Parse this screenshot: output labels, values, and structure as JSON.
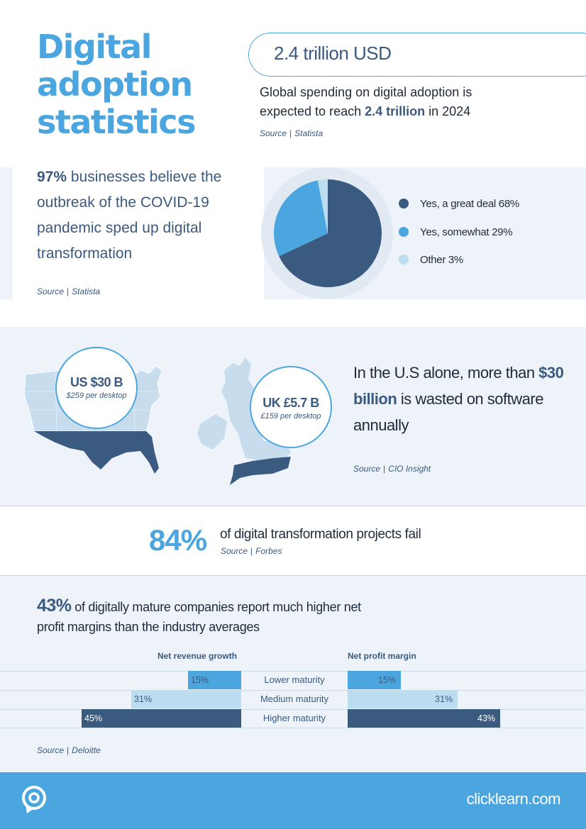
{
  "title": "Digital adoption statistics",
  "spending": {
    "amount": "2.4 trillion USD",
    "desc_pre": "Global spending on digital adoption is expected to reach ",
    "desc_hl": "2.4 trillion",
    "desc_post": " in 2024",
    "source_label": "Source",
    "source_name": "Statista"
  },
  "covid": {
    "pct": "97%",
    "text": " businesses believe the outbreak of the COVID-19 pandemic sped up digital transformation",
    "source_label": "Source",
    "source_name": "Statista"
  },
  "waste": {
    "us_amount": "US $30 B",
    "us_per": "$259 per desktop",
    "uk_amount": "UK £5.7 B",
    "uk_per": "£159 per desktop",
    "text_pre": "In the U.S alone, more than ",
    "text_hl": "$30 billion",
    "text_post": " is wasted on software annually",
    "source_label": "Source",
    "source_name": "CIO Insight"
  },
  "fail": {
    "pct": "84%",
    "text": "of digital transformation projects fail",
    "source_label": "Source",
    "source_name": "Forbes"
  },
  "mature": {
    "pct": "43%",
    "text": " of digitally mature companies report much higher net profit margins than the industry averages",
    "source_label": "Source",
    "source_name": "Deloitte"
  },
  "footer": {
    "url": "clicklearn.com",
    "logo_icon": "clicklearn-logo-icon"
  },
  "colors": {
    "dark": "#3a5a80",
    "mid": "#4ba6df",
    "light": "#bcdcef",
    "pale": "#edf3f8"
  },
  "chart_data": [
    {
      "type": "pie",
      "labels": [
        "Yes, a great deal 68%",
        "Yes, somewhat 29%",
        "Other 3%"
      ],
      "categories": [
        "Yes, a great deal",
        "Yes, somewhat",
        "Other"
      ],
      "values": [
        68,
        29,
        3
      ],
      "colors": [
        "#3a5a80",
        "#4ba6df",
        "#bcdcef"
      ],
      "legend": "right"
    },
    {
      "type": "bar",
      "orientation": "horizontal-butterfly",
      "categories": [
        "Lower maturity",
        "Medium maturity",
        "Higher maturity"
      ],
      "series": [
        {
          "name": "Net revenue growth",
          "values": [
            15,
            31,
            45
          ],
          "labels": [
            "15%",
            "31%",
            "45%"
          ]
        },
        {
          "name": "Net profit margin",
          "values": [
            15,
            31,
            43
          ],
          "labels": [
            "15%",
            "31%",
            "43%"
          ]
        }
      ],
      "colors": [
        "#4ba6df",
        "#bcdcef",
        "#3a5a80"
      ],
      "xlim": [
        0,
        50
      ]
    }
  ]
}
